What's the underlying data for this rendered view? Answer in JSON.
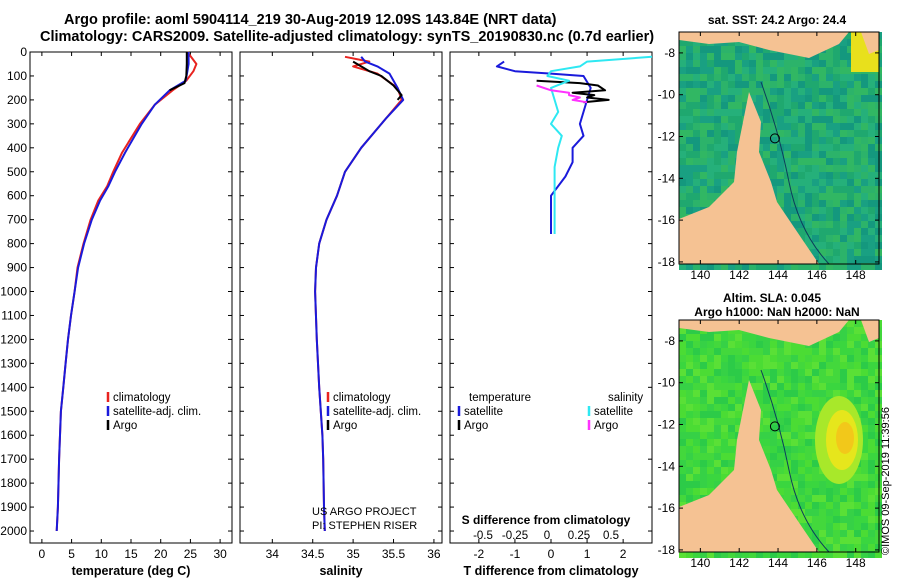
{
  "header": {
    "line1": "Argo profile: aoml 5904114_219 30-Aug-2019 12.09S 143.84E (NRT data)",
    "line2": "Climatology: CARS2009. Satellite-adjusted climatology: synTS_20190830.nc (0.7d earlier)"
  },
  "colors": {
    "climatology": "#e8231f",
    "satellite": "#1a1adb",
    "argo": "#000000",
    "sat_salinity": "#2ee8f2",
    "argo_salinity": "#ff33ff"
  },
  "depth_axis": {
    "ylim": [
      0,
      2050
    ],
    "ticks": [
      0,
      100,
      200,
      300,
      400,
      500,
      600,
      700,
      800,
      900,
      1000,
      1100,
      1200,
      1300,
      1400,
      1500,
      1600,
      1700,
      1800,
      1900,
      2000
    ],
    "tick_labels": [
      "0",
      "100",
      "200",
      "300",
      "400",
      "500",
      "600",
      "700",
      "800",
      "900",
      "1000",
      "1100",
      "1200",
      "1300",
      "1400",
      "1500",
      "1600",
      "1700",
      "1800",
      "1900",
      "2000"
    ]
  },
  "chart_data": [
    {
      "type": "line",
      "id": "temperature",
      "xlabel": "temperature (deg C)",
      "xlim": [
        -2,
        32
      ],
      "xticks": [
        0,
        5,
        10,
        15,
        20,
        25,
        30
      ],
      "xtick_labels": [
        "0",
        "5",
        "10",
        "15",
        "20",
        "25",
        "30"
      ],
      "legend": [
        "climatology",
        "satellite-adj. clim.",
        "Argo"
      ],
      "series": [
        {
          "name": "climatology",
          "color": "#e8231f",
          "x": [
            24.5,
            26.0,
            25.5,
            24.3,
            22,
            19,
            16.5,
            13.5,
            12,
            11,
            9.5,
            8.2,
            7,
            6,
            5.5,
            4.9,
            4.4,
            4.0,
            3.6,
            3.2,
            2.9,
            2.7,
            2.5
          ],
          "y": [
            0,
            50,
            80,
            120,
            160,
            220,
            300,
            420,
            500,
            560,
            620,
            700,
            800,
            900,
            1000,
            1100,
            1200,
            1300,
            1400,
            1500,
            1700,
            1900,
            2000
          ]
        },
        {
          "name": "satellite-adj. clim.",
          "color": "#1a1adb",
          "x": [
            24.7,
            24.7,
            24.5,
            24.2,
            21.5,
            19,
            16.8,
            14,
            12.3,
            11.2,
            9.8,
            8.4,
            7.1,
            6.1,
            5.5,
            4.9,
            4.4,
            4.0,
            3.6,
            3.2,
            2.9,
            2.7,
            2.5
          ],
          "y": [
            0,
            50,
            80,
            120,
            160,
            220,
            300,
            420,
            500,
            560,
            620,
            700,
            800,
            900,
            1000,
            1100,
            1200,
            1300,
            1400,
            1500,
            1700,
            1900,
            2000
          ]
        },
        {
          "name": "Argo",
          "color": "#000000",
          "x": [
            24.4,
            24.4,
            24.3,
            24.0,
            21.5
          ],
          "y": [
            0,
            50,
            100,
            130,
            160
          ]
        }
      ]
    },
    {
      "type": "line",
      "id": "salinity",
      "xlabel": "salinity",
      "xlim": [
        33.6,
        36.1
      ],
      "xticks": [
        34,
        34.5,
        35,
        35.5,
        36
      ],
      "xtick_labels": [
        "34",
        "34.5",
        "35",
        "35.5",
        "36"
      ],
      "legend": [
        "climatology",
        "satellite-adj. clim.",
        "Argo"
      ],
      "credits": [
        "US ARGO PROJECT",
        "PI: STEPHEN RISER"
      ],
      "series": [
        {
          "name": "climatology",
          "color": "#e8231f",
          "x": [
            34.9,
            35.2,
            35.0,
            35.3,
            35.55,
            35.6,
            35.4,
            35.1,
            34.9,
            34.8,
            34.67,
            34.58,
            34.54,
            34.53,
            34.55,
            34.58,
            34.6,
            34.62,
            34.63,
            34.64,
            34.65
          ],
          "y": [
            20,
            40,
            60,
            90,
            150,
            200,
            280,
            400,
            500,
            600,
            700,
            800,
            900,
            1000,
            1200,
            1400,
            1500,
            1600,
            1700,
            1900,
            2000
          ]
        },
        {
          "name": "satellite-adj. clim.",
          "color": "#1a1adb",
          "x": [
            35.1,
            35.15,
            35.3,
            35.45,
            35.55,
            35.62,
            35.4,
            35.1,
            34.9,
            34.8,
            34.67,
            34.58,
            34.54,
            34.53,
            34.55,
            34.58,
            34.6,
            34.62,
            34.63,
            34.64,
            34.65
          ],
          "y": [
            20,
            40,
            60,
            90,
            150,
            200,
            280,
            400,
            500,
            600,
            700,
            800,
            900,
            1000,
            1200,
            1400,
            1500,
            1600,
            1700,
            1900,
            2000
          ]
        },
        {
          "name": "Argo",
          "color": "#000000",
          "x": [
            35.0,
            35.1,
            35.2,
            35.35,
            35.5,
            35.6,
            35.55
          ],
          "y": [
            40,
            60,
            80,
            100,
            140,
            180,
            200
          ]
        }
      ]
    },
    {
      "type": "line",
      "id": "difference",
      "xlabel": "T difference from climatology",
      "x2label": "S difference from climatology",
      "xlim": [
        -2.8,
        2.8
      ],
      "xticks": [
        -2,
        -1,
        0,
        1,
        2
      ],
      "xtick_labels": [
        "-2",
        "-1",
        "0",
        "1",
        "2"
      ],
      "s_xtick_labels": [
        "-0.5",
        "-0.25",
        "0",
        "0.25",
        "0.5"
      ],
      "legend_temperature_title": "temperature",
      "legend_salinity_title": "salinity",
      "legend_temperature": [
        "satellite",
        "Argo"
      ],
      "legend_salinity": [
        "satellite",
        "Argo"
      ],
      "series": [
        {
          "name": "temperature satellite",
          "color": "#1a1adb",
          "x": [
            -1.3,
            -1.5,
            -1.0,
            0.0,
            0.9,
            1.1,
            1.0,
            0.9,
            0.8,
            0.9,
            0.6,
            0.6,
            0.4,
            0.0,
            0.0
          ],
          "y": [
            40,
            60,
            80,
            90,
            100,
            150,
            200,
            250,
            300,
            350,
            400,
            460,
            520,
            600,
            760
          ]
        },
        {
          "name": "temperature Argo",
          "color": "#000000",
          "x": [
            -0.4,
            0.8,
            1.3,
            1.5,
            0.6,
            1.2,
            1.0,
            1.6,
            0.9
          ],
          "y": [
            120,
            130,
            140,
            160,
            170,
            180,
            190,
            200,
            210
          ]
        },
        {
          "name": "salinity satellite",
          "color": "#2ee8f2",
          "x": [
            2.8,
            1.0,
            0.8,
            0.0,
            -0.1,
            0.5,
            0.0,
            0.2,
            0.0,
            0.3,
            0.2,
            0.1,
            0.1,
            0.1
          ],
          "y": [
            20,
            40,
            60,
            80,
            100,
            120,
            150,
            250,
            300,
            350,
            400,
            480,
            600,
            760
          ]
        },
        {
          "name": "salinity Argo",
          "color": "#ff33ff",
          "x": [
            -0.4,
            0.0,
            0.5,
            0.5,
            0.8,
            0.6,
            1.0
          ],
          "y": [
            140,
            160,
            170,
            180,
            190,
            200,
            210
          ]
        }
      ]
    }
  ],
  "maps": {
    "sst": {
      "title": "sat. SST: 24.2 Argo: 24.4",
      "xticks": [
        "140",
        "142",
        "144",
        "146",
        "148"
      ],
      "yticks": [
        "-8",
        "-10",
        "-12",
        "-14",
        "-16",
        "-18"
      ]
    },
    "sla": {
      "title1": "Altim. SLA: 0.045",
      "title2": "Argo h1000: NaN h2000: NaN",
      "xticks": [
        "140",
        "142",
        "144",
        "146",
        "148"
      ],
      "yticks": [
        "-8",
        "-10",
        "-12",
        "-14",
        "-16",
        "-18"
      ]
    }
  },
  "imos_credit": "©IMOS 09-Sep-2019 11:39:56"
}
